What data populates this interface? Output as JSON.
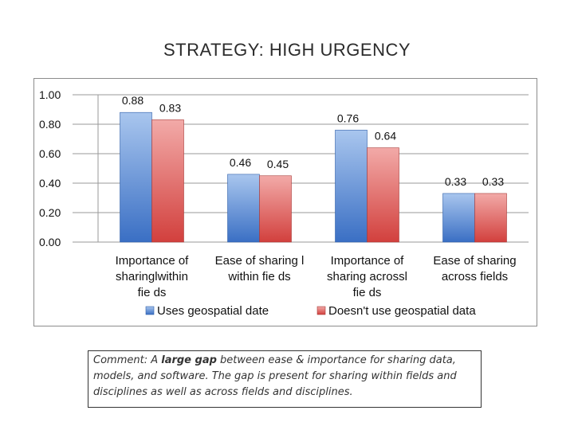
{
  "slide": {
    "title": "STRATEGY: HIGH URGENCY"
  },
  "chart_data": {
    "type": "bar",
    "title": "",
    "xlabel": "",
    "ylabel": "",
    "ylim": [
      0,
      1.0
    ],
    "yticks": [
      "0.00",
      "0.20",
      "0.40",
      "0.60",
      "0.80",
      "1.00"
    ],
    "grid": true,
    "legend_position": "bottom",
    "categories": [
      [
        "Importance of",
        "sharinglwithin",
        "fie ds"
      ],
      [
        "Ease of sharing l",
        "within fie ds"
      ],
      [
        "Importance of",
        "sharing acrossl",
        "fie ds"
      ],
      [
        "Ease of sharing",
        "across fields"
      ]
    ],
    "series": [
      {
        "name": "Uses geospatial date",
        "color": "#4f81bd",
        "values": [
          0.88,
          0.46,
          0.76,
          0.33
        ],
        "labels": [
          "0.88",
          "0.46",
          "0.76",
          "0.33"
        ]
      },
      {
        "name": "Doesn't use geospatial data",
        "color": "#c0504d",
        "values": [
          0.83,
          0.45,
          0.64,
          0.33
        ],
        "labels": [
          "0.83",
          "0.45",
          "0.64",
          "0.33"
        ]
      }
    ]
  },
  "comment": {
    "prefix": "Comment: A ",
    "emphasis": "large gap",
    "suffix": " between ease & importance for sharing data, models, and software.  The gap is present for sharing within fields and disciplines as well as across fields and disciplines."
  }
}
